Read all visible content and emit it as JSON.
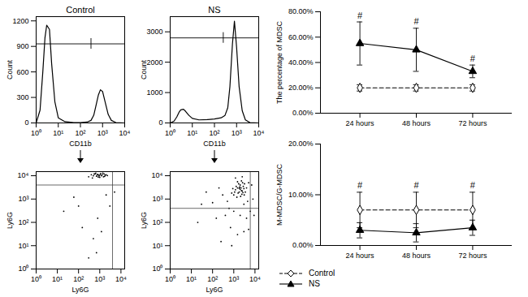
{
  "chart_data": [
    {
      "type": "line",
      "title": "Control",
      "xlabel": "CD11b",
      "ylabel": "Count",
      "log": "x",
      "color": "#000000",
      "x": [
        1,
        1.5,
        2,
        2.5,
        3,
        4,
        5,
        7,
        10,
        20,
        50,
        100,
        200,
        300,
        400,
        500,
        650,
        800,
        1000,
        1300,
        1800,
        2500,
        4000,
        10000
      ],
      "values": [
        0,
        150,
        600,
        1000,
        1150,
        1100,
        700,
        250,
        60,
        15,
        5,
        5,
        10,
        30,
        90,
        200,
        330,
        390,
        370,
        250,
        100,
        30,
        5,
        0
      ],
      "xlim": [
        1,
        10000
      ],
      "xticks": [
        {
          "value": 1,
          "label": "10⁰"
        },
        {
          "value": 10,
          "label": "10¹"
        },
        {
          "value": 100,
          "label": "10²"
        },
        {
          "value": 1000,
          "label": "10³"
        },
        {
          "value": 10000,
          "label": "10⁴"
        }
      ],
      "ylim": [
        0,
        1250
      ],
      "yticks": [
        0,
        300,
        600,
        900,
        1200
      ],
      "gate": {
        "x": 300,
        "y": 930
      }
    },
    {
      "type": "line",
      "title": "NS",
      "xlabel": "CD11b",
      "ylabel": "Count",
      "log": "x",
      "color": "#000000",
      "x": [
        1,
        1.5,
        2,
        2.5,
        3,
        4,
        5,
        7,
        10,
        20,
        50,
        100,
        200,
        300,
        400,
        500,
        650,
        800,
        1000,
        1300,
        1800,
        2500,
        4000,
        10000
      ],
      "values": [
        0,
        60,
        200,
        350,
        430,
        450,
        380,
        250,
        150,
        100,
        110,
        130,
        170,
        250,
        500,
        1200,
        2600,
        3350,
        2500,
        1200,
        400,
        100,
        10,
        0
      ],
      "xlim": [
        1,
        10000
      ],
      "xticks": [
        {
          "value": 1,
          "label": "10⁰"
        },
        {
          "value": 10,
          "label": "10¹"
        },
        {
          "value": 100,
          "label": "10²"
        },
        {
          "value": 1000,
          "label": "10³"
        },
        {
          "value": 10000,
          "label": "10⁴"
        }
      ],
      "ylim": [
        0,
        3500
      ],
      "yticks": [
        0,
        1000,
        2000,
        3000
      ],
      "gate": {
        "x": 250,
        "y": 2800
      }
    },
    {
      "type": "scatter",
      "xlabel": "Ly6G",
      "ylabel": "Ly6G",
      "log": true,
      "color": "#000000",
      "x": [
        300,
        400,
        500,
        600,
        700,
        800,
        900,
        1000,
        1100,
        1200,
        1300,
        1500,
        1600,
        1800,
        2000,
        450,
        650,
        750,
        950,
        1400,
        850,
        550,
        1050,
        1700,
        2300,
        20,
        150,
        500,
        800,
        3000,
        60,
        1200,
        300,
        2000,
        5000,
        100,
        700
      ],
      "values": [
        9000,
        11000,
        10000,
        12000,
        9500,
        11500,
        10500,
        8500,
        12500,
        10000,
        11000,
        9000,
        12000,
        10500,
        11000,
        8000,
        13000,
        10800,
        9800,
        13000,
        8800,
        11800,
        11200,
        9400,
        10200,
        300,
        60,
        20,
        150,
        500,
        1200,
        40,
        3,
        1500,
        2000,
        500,
        5
      ],
      "xlim": [
        1,
        15000
      ],
      "xticks": [
        {
          "value": 1,
          "label": "10⁰"
        },
        {
          "value": 10,
          "label": "10¹"
        },
        {
          "value": 100,
          "label": "10²"
        },
        {
          "value": 1000,
          "label": "10³"
        },
        {
          "value": 10000,
          "label": "10⁴"
        }
      ],
      "ylim": [
        1,
        15000
      ],
      "yticks": [
        {
          "value": 1,
          "label": "10⁰"
        },
        {
          "value": 10,
          "label": "10¹"
        },
        {
          "value": 100,
          "label": "10²"
        },
        {
          "value": 1000,
          "label": "10³"
        },
        {
          "value": 10000,
          "label": "10⁴"
        }
      ],
      "gate": {
        "x": 4000,
        "y": 4000
      }
    },
    {
      "type": "scatter",
      "xlabel": "Ly6G",
      "ylabel": "Ly6G",
      "log": true,
      "color": "#000000",
      "x": [
        1000,
        1200,
        1500,
        1800,
        2000,
        2200,
        2500,
        2800,
        3000,
        1600,
        1300,
        2400,
        3200,
        1100,
        1700,
        2600,
        2100,
        1900,
        3500,
        1400,
        900,
        2300,
        4000,
        2700,
        1500,
        800,
        3100,
        2000,
        1800,
        2300,
        500,
        300,
        4500,
        600,
        5000,
        200,
        3000,
        1000,
        2000,
        4000,
        700,
        100,
        50,
        20,
        1500,
        3000,
        6000,
        400,
        8000,
        7000,
        1200,
        2500,
        150,
        30,
        9000,
        250,
        800,
        5000
      ],
      "values": [
        1500,
        2500,
        3000,
        2000,
        4000,
        3000,
        2200,
        3500,
        2800,
        1800,
        3500,
        1600,
        4500,
        2000,
        4500,
        5000,
        1300,
        3300,
        2000,
        1200,
        2800,
        6000,
        3000,
        1900,
        5500,
        1800,
        1500,
        2600,
        2900,
        2300,
        800,
        1500,
        800,
        400,
        5000,
        3000,
        600,
        300,
        200,
        150,
        60,
        700,
        2000,
        100,
        30,
        40,
        300,
        200,
        1000,
        4000,
        8000,
        9000,
        150,
        600,
        200,
        15,
        10,
        50
      ],
      "xlim": [
        1,
        15000
      ],
      "xticks": [
        {
          "value": 1,
          "label": "10⁰"
        },
        {
          "value": 10,
          "label": "10¹"
        },
        {
          "value": 100,
          "label": "10²"
        },
        {
          "value": 1000,
          "label": "10³"
        },
        {
          "value": 10000,
          "label": "10⁴"
        }
      ],
      "ylim": [
        1,
        15000
      ],
      "yticks": [
        {
          "value": 1,
          "label": "10⁰"
        },
        {
          "value": 10,
          "label": "10¹"
        },
        {
          "value": 100,
          "label": "10²"
        },
        {
          "value": 1000,
          "label": "10³"
        },
        {
          "value": 10000,
          "label": "10⁴"
        }
      ],
      "gate": {
        "x": 6000,
        "y": 400
      }
    },
    {
      "type": "line",
      "ylabel": "The percentage of MDSC",
      "categories": [
        "24 hours",
        "48 hours",
        "72 hours"
      ],
      "ylim": [
        0,
        80
      ],
      "yticks": [
        {
          "value": 0,
          "label": "0.00%"
        },
        {
          "value": 20,
          "label": "20.00%"
        },
        {
          "value": 40,
          "label": "40.00%"
        },
        {
          "value": 60,
          "label": "60.00%"
        },
        {
          "value": 80,
          "label": "80.00%"
        }
      ],
      "series": [
        {
          "name": "Control",
          "color": "#000000",
          "marker": "diamond",
          "line_style": "dashed",
          "values": [
            20,
            20,
            20
          ],
          "errors": [
            2.5,
            2.5,
            2.5
          ]
        },
        {
          "name": "NS",
          "color": "#000000",
          "marker": "triangle",
          "line_style": "solid",
          "values": [
            55,
            50,
            33
          ],
          "errors": [
            17,
            17,
            5
          ]
        }
      ],
      "annotations": [
        {
          "category": "24 hours",
          "series": "NS",
          "text": "#"
        },
        {
          "category": "48 hours",
          "series": "NS",
          "text": "#"
        },
        {
          "category": "72 hours",
          "series": "NS",
          "text": "#"
        }
      ]
    },
    {
      "type": "line",
      "ylabel": "M-MDSC/G-MDSC",
      "legend": "bottom",
      "categories": [
        "24 hours",
        "48 hours",
        "72 hours"
      ],
      "ylim": [
        0,
        20
      ],
      "yticks": [
        {
          "value": 0,
          "label": "0.00%"
        },
        {
          "value": 10,
          "label": "10.00%"
        },
        {
          "value": 20,
          "label": "20.00%"
        }
      ],
      "series": [
        {
          "name": "Control",
          "color": "#000000",
          "marker": "diamond",
          "line_style": "dashed",
          "values": [
            7,
            7,
            7
          ],
          "errors": [
            3.5,
            3.5,
            3.5
          ]
        },
        {
          "name": "NS",
          "color": "#000000",
          "marker": "triangle",
          "line_style": "solid",
          "values": [
            3,
            2.5,
            3.5
          ],
          "errors": [
            1.5,
            1.8,
            1.5
          ]
        }
      ],
      "annotations": [
        {
          "category": "24 hours",
          "series": "Control",
          "text": "#"
        },
        {
          "category": "48 hours",
          "series": "Control",
          "text": "#"
        },
        {
          "category": "72 hours",
          "series": "Control",
          "text": "#"
        }
      ]
    }
  ]
}
